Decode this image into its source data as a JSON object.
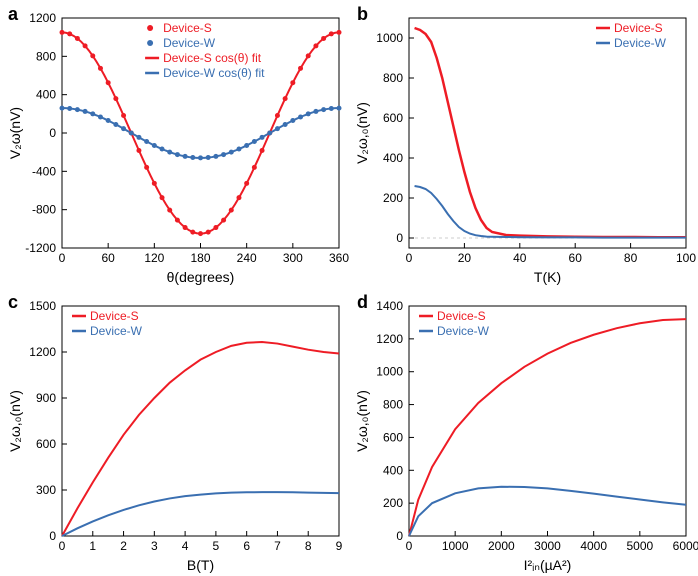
{
  "colors": {
    "device_s": "#ee1c25",
    "device_w": "#3a6fb1",
    "axis": "#000000",
    "background": "#ffffff",
    "zero_dash": "#cccccc"
  },
  "fonts": {
    "panel_label_size": 18,
    "tick_size": 12,
    "axis_label_size": 14,
    "legend_size": 12
  },
  "panels": {
    "a": {
      "label": "a",
      "type": "line+scatter",
      "xlabel": "θ(degrees)",
      "ylabel": "V₂ω(nV)",
      "xlim": [
        0,
        360
      ],
      "ylim": [
        -1200,
        1200
      ],
      "xticks": [
        0,
        60,
        120,
        180,
        240,
        300,
        360
      ],
      "yticks": [
        -1200,
        -800,
        -400,
        0,
        400,
        800,
        1200
      ],
      "legend": [
        {
          "label": "Device-S",
          "color": "#ee1c25",
          "marker": "circle"
        },
        {
          "label": "Device-W",
          "color": "#3a6fb1",
          "marker": "circle"
        },
        {
          "label": "Device-S  cos(θ) fit",
          "color": "#ee1c25",
          "marker": "line"
        },
        {
          "label": "Device-W cos(θ) fit",
          "color": "#3a6fb1",
          "marker": "line"
        }
      ],
      "legend_pos": "top-center",
      "series_s": {
        "type": "cos",
        "amplitude": 1050,
        "offset": 0,
        "color": "#ee1c25",
        "line_width": 2,
        "marker_size": 2.5
      },
      "series_w": {
        "type": "cos",
        "amplitude": 260,
        "offset": 0,
        "color": "#3a6fb1",
        "line_width": 2,
        "marker_size": 2.5
      }
    },
    "b": {
      "label": "b",
      "type": "line",
      "xlabel": "T(K)",
      "ylabel": "V₂ω,₀(nV)",
      "xlim": [
        0,
        100
      ],
      "ylim": [
        -50,
        1100
      ],
      "xticks": [
        0,
        20,
        40,
        60,
        80,
        100
      ],
      "yticks": [
        0,
        200,
        400,
        600,
        800,
        1000
      ],
      "zero_line": true,
      "legend": [
        {
          "label": "Device-S",
          "color": "#ee1c25",
          "marker": "line"
        },
        {
          "label": "Device-W",
          "color": "#3a6fb1",
          "marker": "line"
        }
      ],
      "legend_pos": "top-right",
      "series_s": {
        "x": [
          2,
          4,
          6,
          8,
          10,
          12,
          14,
          16,
          18,
          20,
          22,
          24,
          26,
          28,
          30,
          35,
          40,
          45,
          50,
          60,
          70,
          80,
          90,
          100
        ],
        "y": [
          1050,
          1040,
          1020,
          980,
          900,
          800,
          680,
          560,
          440,
          330,
          230,
          150,
          90,
          50,
          30,
          15,
          12,
          10,
          8,
          6,
          5,
          5,
          4,
          4
        ],
        "color": "#ee1c25",
        "line_width": 2.5
      },
      "series_w": {
        "x": [
          2,
          4,
          6,
          8,
          10,
          12,
          14,
          16,
          18,
          20,
          22,
          24,
          26,
          28,
          30,
          35,
          40,
          50,
          60,
          70,
          80,
          90,
          100
        ],
        "y": [
          260,
          255,
          245,
          225,
          195,
          160,
          120,
          85,
          55,
          35,
          22,
          14,
          10,
          7,
          6,
          5,
          4,
          3,
          3,
          2,
          2,
          2,
          2
        ],
        "color": "#3a6fb1",
        "line_width": 2
      }
    },
    "c": {
      "label": "c",
      "type": "line",
      "xlabel": "B(T)",
      "ylabel": "V₂ω,₀(nV)",
      "xlim": [
        0,
        9
      ],
      "ylim": [
        0,
        1500
      ],
      "xticks": [
        0,
        1,
        2,
        3,
        4,
        5,
        6,
        7,
        8,
        9
      ],
      "yticks": [
        0,
        300,
        600,
        900,
        1200,
        1500
      ],
      "legend": [
        {
          "label": "Device-S",
          "color": "#ee1c25",
          "marker": "line"
        },
        {
          "label": "Device-W",
          "color": "#3a6fb1",
          "marker": "line"
        }
      ],
      "legend_pos": "top-left",
      "series_s": {
        "x": [
          0,
          0.5,
          1,
          1.5,
          2,
          2.5,
          3,
          3.5,
          4,
          4.5,
          5,
          5.5,
          6,
          6.5,
          7,
          7.5,
          8,
          8.5,
          9
        ],
        "y": [
          0,
          180,
          350,
          510,
          660,
          790,
          900,
          1000,
          1080,
          1150,
          1200,
          1240,
          1260,
          1265,
          1255,
          1235,
          1215,
          1200,
          1190
        ],
        "color": "#ee1c25",
        "line_width": 2
      },
      "series_w": {
        "x": [
          0,
          0.5,
          1,
          1.5,
          2,
          2.5,
          3,
          3.5,
          4,
          4.5,
          5,
          5.5,
          6,
          6.5,
          7,
          7.5,
          8,
          8.5,
          9
        ],
        "y": [
          0,
          50,
          95,
          135,
          170,
          200,
          225,
          245,
          260,
          270,
          278,
          283,
          285,
          286,
          286,
          285,
          283,
          281,
          280
        ],
        "color": "#3a6fb1",
        "line_width": 2
      }
    },
    "d": {
      "label": "d",
      "type": "line",
      "xlabel": "I²ᵢₙ(µA²)",
      "ylabel": "V₂ω,₀(nV)",
      "xlim": [
        0,
        6000
      ],
      "ylim": [
        0,
        1400
      ],
      "xticks": [
        0,
        1000,
        2000,
        3000,
        4000,
        5000,
        6000
      ],
      "yticks": [
        0,
        200,
        400,
        600,
        800,
        1000,
        1200,
        1400
      ],
      "legend": [
        {
          "label": "Device-S",
          "color": "#ee1c25",
          "marker": "line"
        },
        {
          "label": "Device-W",
          "color": "#3a6fb1",
          "marker": "line"
        }
      ],
      "legend_pos": "top-left",
      "series_s": {
        "x": [
          0,
          200,
          500,
          1000,
          1500,
          2000,
          2500,
          3000,
          3500,
          4000,
          4500,
          5000,
          5500,
          6000
        ],
        "y": [
          0,
          220,
          420,
          650,
          810,
          930,
          1030,
          1110,
          1175,
          1225,
          1265,
          1295,
          1315,
          1320
        ],
        "color": "#ee1c25",
        "line_width": 2
      },
      "series_w": {
        "x": [
          0,
          200,
          500,
          1000,
          1500,
          2000,
          2500,
          3000,
          3500,
          4000,
          4500,
          5000,
          5500,
          6000
        ],
        "y": [
          0,
          120,
          200,
          260,
          290,
          300,
          298,
          290,
          275,
          258,
          240,
          222,
          205,
          190
        ],
        "color": "#3a6fb1",
        "line_width": 2
      }
    }
  }
}
